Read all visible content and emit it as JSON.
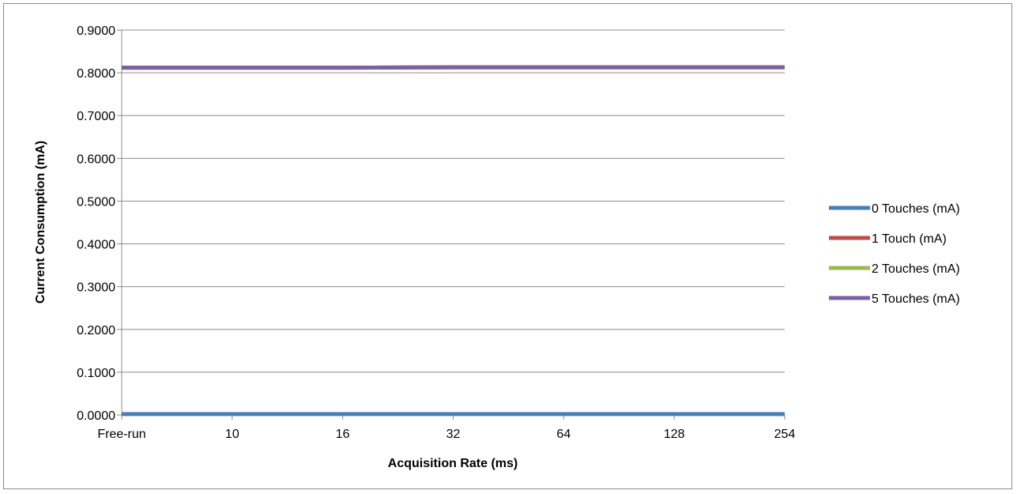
{
  "chart_data": {
    "type": "line",
    "xlabel": "Acquisition Rate (ms)",
    "ylabel": "Current Consumption (mA)",
    "categories": [
      "Free-run",
      "10",
      "16",
      "32",
      "64",
      "128",
      "254"
    ],
    "ylim": [
      0,
      0.9
    ],
    "yticks": [
      "0.0000",
      "0.1000",
      "0.2000",
      "0.3000",
      "0.4000",
      "0.5000",
      "0.6000",
      "0.7000",
      "0.8000",
      "0.9000"
    ],
    "grid": true,
    "legend": "right",
    "series": [
      {
        "name": "0 Touches (mA)",
        "color": "#4a7ebb",
        "values": [
          0.002,
          0.002,
          0.002,
          0.002,
          0.002,
          0.002,
          0.002
        ]
      },
      {
        "name": "1 Touch (mA)",
        "color": "#be4b48",
        "values": [
          0.812,
          0.812,
          0.812,
          0.813,
          0.813,
          0.813,
          0.813
        ]
      },
      {
        "name": "2 Touches (mA)",
        "color": "#98b954",
        "values": [
          0.812,
          0.812,
          0.812,
          0.813,
          0.813,
          0.813,
          0.813
        ]
      },
      {
        "name": "5 Touches (mA)",
        "color": "#7d60a0",
        "values": [
          0.812,
          0.812,
          0.812,
          0.813,
          0.813,
          0.813,
          0.813
        ]
      }
    ]
  }
}
